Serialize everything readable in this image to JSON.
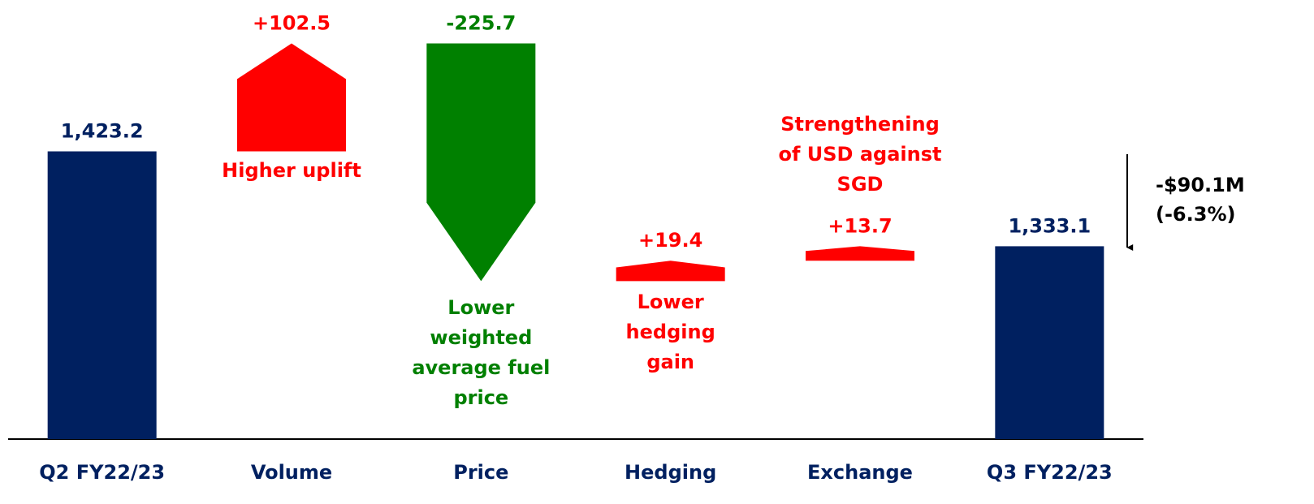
{
  "chart_data": {
    "type": "waterfall",
    "categories": [
      "Q2 FY22/23",
      "Volume",
      "Price",
      "Hedging",
      "Exchange",
      "Q3 FY22/23"
    ],
    "values": [
      1423.2,
      102.5,
      -225.7,
      19.4,
      13.7,
      1333.1
    ],
    "value_labels": [
      "1,423.2",
      "+102.5",
      "-225.7",
      "+19.4",
      "+13.7",
      "1,333.1"
    ],
    "totals": [
      true,
      false,
      false,
      false,
      false,
      true
    ],
    "colors": {
      "total": "#002060",
      "increase": "#ff0000",
      "decrease": "#008000"
    },
    "notes": [
      null,
      [
        "Higher uplift"
      ],
      [
        "Lower",
        "weighted",
        "average fuel",
        "price"
      ],
      [
        "Lower",
        "hedging",
        "gain"
      ],
      [
        "Strengthening",
        "of USD against",
        "SGD"
      ],
      null
    ],
    "change_note": [
      "-$90.1M",
      "(-6.3%)"
    ],
    "ylim": [
      1150,
      1560
    ]
  }
}
